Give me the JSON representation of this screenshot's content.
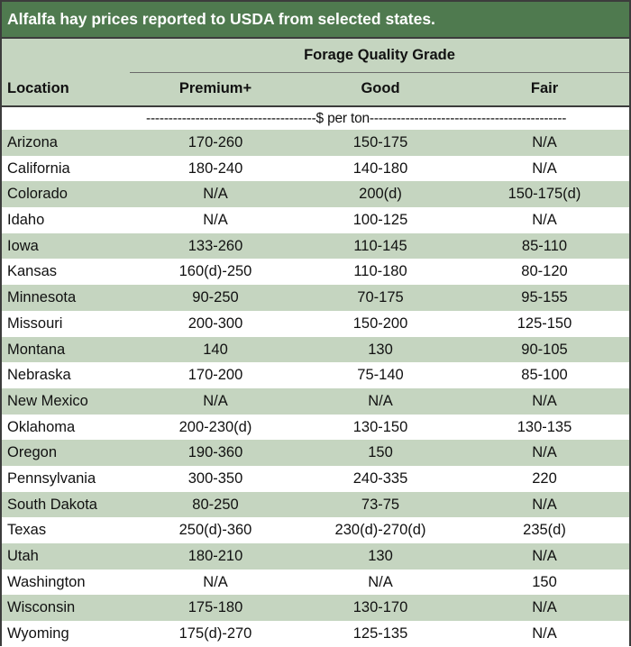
{
  "title": "Alfalfa hay prices reported to USDA from selected states.",
  "header": {
    "group": "Forage Quality Grade",
    "location": "Location",
    "premium": "Premium+",
    "good": "Good",
    "fair": "Fair"
  },
  "units": "--------------------------------------$ per ton--------------------------------------------",
  "rows": [
    {
      "location": "Arizona",
      "premium": "170-260",
      "good": "150-175",
      "fair": "N/A"
    },
    {
      "location": "California",
      "premium": "180-240",
      "good": "140-180",
      "fair": "N/A"
    },
    {
      "location": "Colorado",
      "premium": "N/A",
      "good": "200(d)",
      "fair": "150-175(d)"
    },
    {
      "location": "Idaho",
      "premium": "N/A",
      "good": "100-125",
      "fair": "N/A"
    },
    {
      "location": "Iowa",
      "premium": "133-260",
      "good": "110-145",
      "fair": "85-110"
    },
    {
      "location": "Kansas",
      "premium": "160(d)-250",
      "good": "110-180",
      "fair": "80-120"
    },
    {
      "location": "Minnesota",
      "premium": "90-250",
      "good": "70-175",
      "fair": "95-155"
    },
    {
      "location": "Missouri",
      "premium": "200-300",
      "good": "150-200",
      "fair": "125-150"
    },
    {
      "location": "Montana",
      "premium": "140",
      "good": "130",
      "fair": "90-105"
    },
    {
      "location": "Nebraska",
      "premium": "170-200",
      "good": "75-140",
      "fair": "85-100"
    },
    {
      "location": "New Mexico",
      "premium": "N/A",
      "good": "N/A",
      "fair": "N/A"
    },
    {
      "location": "Oklahoma",
      "premium": "200-230(d)",
      "good": "130-150",
      "fair": "130-135"
    },
    {
      "location": "Oregon",
      "premium": "190-360",
      "good": "150",
      "fair": "N/A"
    },
    {
      "location": "Pennsylvania",
      "premium": "300-350",
      "good": "240-335",
      "fair": "220"
    },
    {
      "location": "South Dakota",
      "premium": "80-250",
      "good": "73-75",
      "fair": "N/A"
    },
    {
      "location": "Texas",
      "premium": "250(d)-360",
      "good": "230(d)-270(d)",
      "fair": "235(d)"
    },
    {
      "location": "Utah",
      "premium": "180-210",
      "good": "130",
      "fair": "N/A"
    },
    {
      "location": "Washington",
      "premium": "N/A",
      "good": "N/A",
      "fair": "150"
    },
    {
      "location": "Wisconsin",
      "premium": "175-180",
      "good": "130-170",
      "fair": "N/A"
    },
    {
      "location": "Wyoming",
      "premium": "175(d)-270",
      "good": "125-135",
      "fair": "N/A"
    }
  ]
}
